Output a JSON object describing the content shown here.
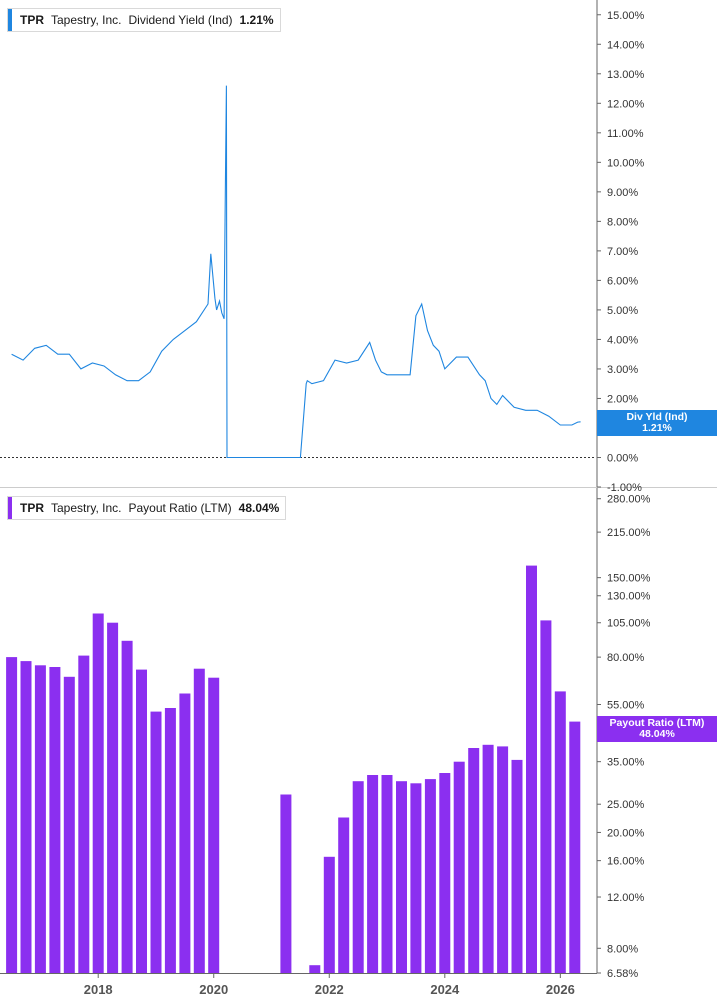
{
  "colors": {
    "yield": "#1f86e0",
    "payout": "#8b2ff0",
    "axis": "#666666",
    "grid": "#cccccc"
  },
  "legend_top": {
    "ticker": "TPR",
    "company": "Tapestry, Inc.",
    "metric": "Dividend Yield (Ind)",
    "value": "1.21%"
  },
  "legend_bottom": {
    "ticker": "TPR",
    "company": "Tapestry, Inc.",
    "metric": "Payout Ratio (LTM)",
    "value": "48.04%"
  },
  "flag_top": {
    "label": "Div Yld (Ind)",
    "value": "1.21%"
  },
  "flag_bottom": {
    "label": "Payout Ratio (LTM)",
    "value": "48.04%"
  },
  "chart_data": [
    {
      "type": "line",
      "series": [
        {
          "name": "Dividend Yield (Ind)",
          "x": [
            2016.5,
            2016.7,
            2016.9,
            2017.1,
            2017.3,
            2017.5,
            2017.7,
            2017.9,
            2018.1,
            2018.3,
            2018.5,
            2018.7,
            2018.9,
            2019.1,
            2019.3,
            2019.5,
            2019.7,
            2019.9,
            2019.95,
            2020.02,
            2020.05,
            2020.1,
            2020.14,
            2020.18,
            2020.2,
            2020.22,
            2020.23,
            2020.24,
            2020.26,
            2021.5,
            2021.6,
            2021.62,
            2021.7,
            2021.9,
            2022.1,
            2022.3,
            2022.5,
            2022.7,
            2022.8,
            2022.9,
            2023.0,
            2023.2,
            2023.4,
            2023.5,
            2023.6,
            2023.7,
            2023.8,
            2023.9,
            2024.0,
            2024.2,
            2024.4,
            2024.6,
            2024.7,
            2024.8,
            2024.9,
            2025.0,
            2025.2,
            2025.4,
            2025.6,
            2025.8,
            2026.0,
            2026.1,
            2026.2,
            2026.3,
            2026.35
          ],
          "y": [
            3.5,
            3.3,
            3.7,
            3.8,
            3.5,
            3.5,
            3.0,
            3.2,
            3.1,
            2.8,
            2.6,
            2.6,
            2.9,
            3.6,
            4.0,
            4.3,
            4.6,
            5.2,
            6.9,
            5.4,
            5.0,
            5.3,
            4.9,
            4.7,
            8.9,
            12.6,
            0.0,
            0.0,
            0.0,
            0.0,
            2.5,
            2.6,
            2.5,
            2.6,
            3.3,
            3.2,
            3.3,
            3.9,
            3.3,
            2.9,
            2.8,
            2.8,
            2.8,
            4.8,
            5.2,
            4.3,
            3.8,
            3.6,
            3.0,
            3.4,
            3.4,
            2.8,
            2.6,
            2.0,
            1.8,
            2.1,
            1.7,
            1.6,
            1.6,
            1.4,
            1.1,
            1.1,
            1.1,
            1.2,
            1.21
          ]
        }
      ],
      "xlim": [
        2016.3,
        2026.6
      ],
      "ylim": [
        -1.0,
        15.5
      ],
      "yticks": [
        "15.00%",
        "14.00%",
        "13.00%",
        "12.00%",
        "11.00%",
        "10.00%",
        "9.00%",
        "8.00%",
        "7.00%",
        "6.00%",
        "5.00%",
        "4.00%",
        "3.00%",
        "2.00%",
        "1.00%",
        "0.00%",
        "-1.00%"
      ],
      "yticks_values": [
        15,
        14,
        13,
        12,
        11,
        10,
        9,
        8,
        7,
        6,
        5,
        4,
        3,
        2,
        1,
        0,
        -1
      ]
    },
    {
      "type": "bar",
      "series": [
        {
          "name": "Payout Ratio (LTM)",
          "x": [
            2016.5,
            2016.75,
            2017.0,
            2017.25,
            2017.5,
            2017.75,
            2018.0,
            2018.25,
            2018.5,
            2018.75,
            2019.0,
            2019.25,
            2019.5,
            2019.75,
            2020.0,
            2021.25,
            2021.75,
            2022.0,
            2022.25,
            2022.5,
            2022.75,
            2023.0,
            2023.25,
            2023.5,
            2023.75,
            2024.0,
            2024.25,
            2024.5,
            2024.75,
            2025.0,
            2025.25,
            2025.5,
            2025.75,
            2026.0,
            2026.25
          ],
          "y": [
            80.0,
            77.5,
            75.0,
            74.0,
            68.5,
            81.0,
            113.0,
            105.0,
            91.0,
            72.5,
            52.0,
            53.5,
            60.0,
            73.0,
            68.0,
            27.0,
            7.0,
            16.5,
            22.5,
            30.0,
            31.5,
            31.5,
            30.0,
            29.5,
            30.5,
            32.0,
            35.0,
            39.0,
            40.0,
            39.5,
            35.5,
            165.0,
            107.0,
            61.0,
            48.04
          ]
        }
      ],
      "ylim": [
        6.58,
        300
      ],
      "scale": "log",
      "yticks": [
        "280.00%",
        "215.00%",
        "150.00%",
        "130.00%",
        "105.00%",
        "80.00%",
        "55.00%",
        "35.00%",
        "25.00%",
        "20.00%",
        "16.00%",
        "12.00%",
        "8.00%",
        "6.58%"
      ],
      "yticks_values": [
        280,
        215,
        150,
        130,
        105,
        80,
        55,
        35,
        25,
        20,
        16,
        12,
        8,
        6.58
      ]
    }
  ],
  "x_axis": {
    "labels": [
      "2018",
      "2020",
      "2022",
      "2024",
      "2026"
    ],
    "values": [
      2018,
      2020,
      2022,
      2024,
      2026
    ]
  }
}
